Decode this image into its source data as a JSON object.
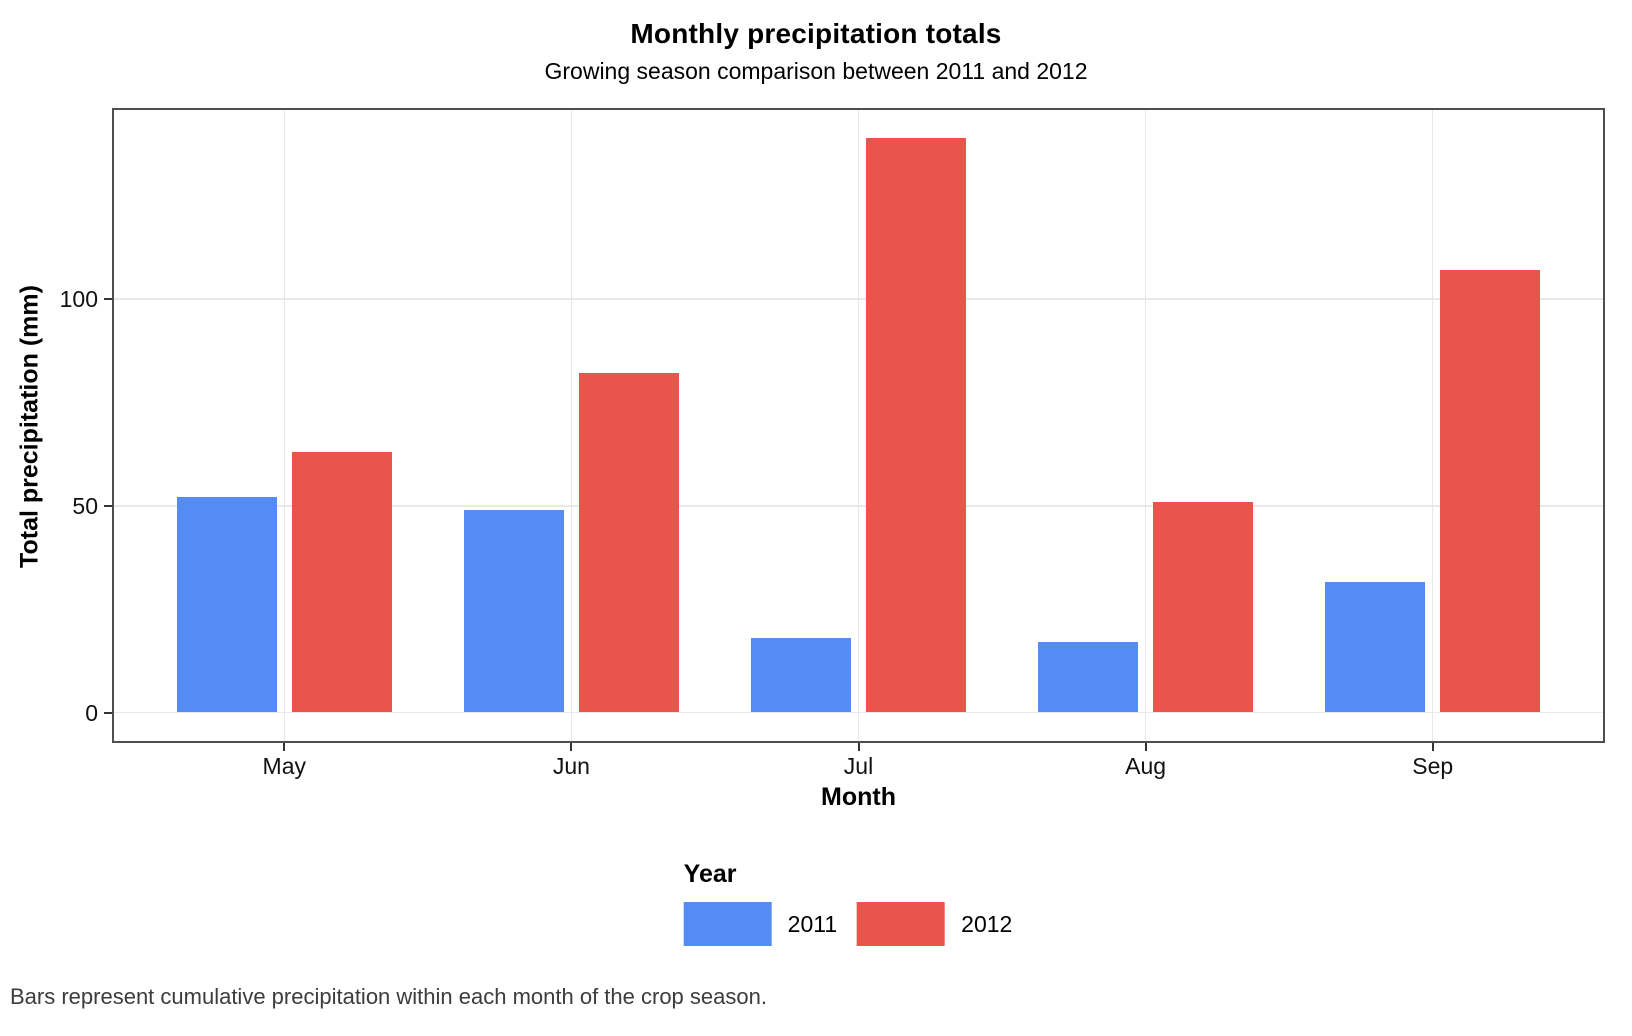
{
  "title": "Monthly precipitation totals",
  "subtitle": "Growing season comparison between 2011 and 2012",
  "caption": "Bars represent cumulative precipitation within each month of the crop season.",
  "legend": {
    "title": "Year",
    "entries": [
      {
        "label": "2011",
        "color": "#548cf4"
      },
      {
        "label": "2012",
        "color": "#e9554b"
      }
    ]
  },
  "axes": {
    "x": {
      "title": "Month",
      "ticks": [
        "May",
        "Jun",
        "Jul",
        "Aug",
        "Sep"
      ]
    },
    "y": {
      "title": "Total precipitation (mm)",
      "ticks": [
        0,
        50,
        100
      ]
    }
  },
  "colors": {
    "series_2011": "#548cf4",
    "series_2012": "#e9554b",
    "panel_border": "#4e4e4e",
    "gridline": "#e8e8e8"
  },
  "chart_data": {
    "type": "bar",
    "categories": [
      "May",
      "Jun",
      "Jul",
      "Aug",
      "Sep"
    ],
    "series": [
      {
        "name": "2011",
        "color": "#548cf4",
        "values": [
          52,
          49,
          18,
          17,
          31.5
        ]
      },
      {
        "name": "2012",
        "color": "#e9554b",
        "values": [
          63,
          82,
          139,
          51,
          107
        ]
      }
    ],
    "title": "Monthly precipitation totals",
    "subtitle": "Growing season comparison between 2011 and 2012",
    "xlabel": "Month",
    "ylabel": "Total precipitation (mm)",
    "ylim": [
      -7.4,
      146.3
    ],
    "grid": true,
    "legend_position": "bottom",
    "caption": "Bars represent cumulative precipitation within each month of the crop season."
  }
}
